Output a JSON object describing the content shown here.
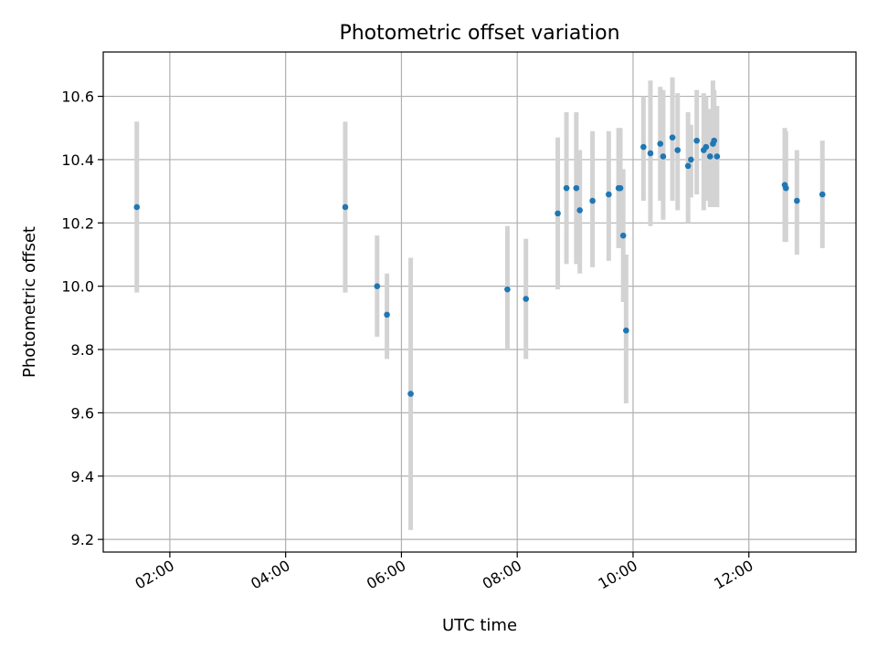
{
  "chart_data": {
    "type": "scatter",
    "title": "Photometric offset variation",
    "xlabel": "UTC time",
    "ylabel": "Photometric offset",
    "x_unit": "hours UTC",
    "xlim": [
      0.85,
      13.85
    ],
    "ylim": [
      9.16,
      10.74
    ],
    "x_ticks": [
      {
        "value": 2,
        "label": "02:00"
      },
      {
        "value": 4,
        "label": "04:00"
      },
      {
        "value": 6,
        "label": "06:00"
      },
      {
        "value": 8,
        "label": "08:00"
      },
      {
        "value": 10,
        "label": "10:00"
      },
      {
        "value": 12,
        "label": "12:00"
      }
    ],
    "y_ticks": [
      {
        "value": 9.2,
        "label": "9.2"
      },
      {
        "value": 9.4,
        "label": "9.4"
      },
      {
        "value": 9.6,
        "label": "9.6"
      },
      {
        "value": 9.8,
        "label": "9.8"
      },
      {
        "value": 10.0,
        "label": "10.0"
      },
      {
        "value": 10.2,
        "label": "10.2"
      },
      {
        "value": 10.4,
        "label": "10.4"
      },
      {
        "value": 10.6,
        "label": "10.6"
      }
    ],
    "grid": true,
    "point_color": "#1f77b4",
    "errorbar_color": "#d3d3d3",
    "points": [
      {
        "x": 1.43,
        "y": 10.25,
        "lo": 9.98,
        "hi": 10.52
      },
      {
        "x": 5.03,
        "y": 10.25,
        "lo": 9.98,
        "hi": 10.52
      },
      {
        "x": 5.58,
        "y": 10.0,
        "lo": 9.84,
        "hi": 10.16
      },
      {
        "x": 5.75,
        "y": 9.91,
        "lo": 9.77,
        "hi": 10.04
      },
      {
        "x": 6.16,
        "y": 9.66,
        "lo": 9.23,
        "hi": 10.09
      },
      {
        "x": 7.83,
        "y": 9.99,
        "lo": 9.8,
        "hi": 10.19
      },
      {
        "x": 8.15,
        "y": 9.96,
        "lo": 9.77,
        "hi": 10.15
      },
      {
        "x": 8.7,
        "y": 10.23,
        "lo": 9.99,
        "hi": 10.47
      },
      {
        "x": 8.85,
        "y": 10.31,
        "lo": 10.07,
        "hi": 10.55
      },
      {
        "x": 9.02,
        "y": 10.31,
        "lo": 10.07,
        "hi": 10.55
      },
      {
        "x": 9.08,
        "y": 10.24,
        "lo": 10.04,
        "hi": 10.43
      },
      {
        "x": 9.3,
        "y": 10.27,
        "lo": 10.06,
        "hi": 10.49
      },
      {
        "x": 9.58,
        "y": 10.29,
        "lo": 10.08,
        "hi": 10.49
      },
      {
        "x": 9.75,
        "y": 10.31,
        "lo": 10.12,
        "hi": 10.5
      },
      {
        "x": 9.78,
        "y": 10.31,
        "lo": 10.12,
        "hi": 10.5
      },
      {
        "x": 9.83,
        "y": 10.16,
        "lo": 9.95,
        "hi": 10.37
      },
      {
        "x": 9.88,
        "y": 9.86,
        "lo": 9.63,
        "hi": 10.1
      },
      {
        "x": 10.18,
        "y": 10.44,
        "lo": 10.27,
        "hi": 10.6
      },
      {
        "x": 10.3,
        "y": 10.42,
        "lo": 10.19,
        "hi": 10.65
      },
      {
        "x": 10.47,
        "y": 10.45,
        "lo": 10.27,
        "hi": 10.63
      },
      {
        "x": 10.52,
        "y": 10.41,
        "lo": 10.21,
        "hi": 10.62
      },
      {
        "x": 10.68,
        "y": 10.47,
        "lo": 10.27,
        "hi": 10.66
      },
      {
        "x": 10.77,
        "y": 10.43,
        "lo": 10.24,
        "hi": 10.61
      },
      {
        "x": 10.95,
        "y": 10.38,
        "lo": 10.2,
        "hi": 10.55
      },
      {
        "x": 11.0,
        "y": 10.4,
        "lo": 10.28,
        "hi": 10.51
      },
      {
        "x": 11.1,
        "y": 10.46,
        "lo": 10.29,
        "hi": 10.62
      },
      {
        "x": 11.22,
        "y": 10.43,
        "lo": 10.24,
        "hi": 10.61
      },
      {
        "x": 11.26,
        "y": 10.44,
        "lo": 10.27,
        "hi": 10.6
      },
      {
        "x": 11.33,
        "y": 10.41,
        "lo": 10.25,
        "hi": 10.56
      },
      {
        "x": 11.38,
        "y": 10.45,
        "lo": 10.25,
        "hi": 10.65
      },
      {
        "x": 11.4,
        "y": 10.46,
        "lo": 10.3,
        "hi": 10.62
      },
      {
        "x": 11.45,
        "y": 10.41,
        "lo": 10.25,
        "hi": 10.57
      },
      {
        "x": 12.62,
        "y": 10.32,
        "lo": 10.14,
        "hi": 10.5
      },
      {
        "x": 12.64,
        "y": 10.31,
        "lo": 10.14,
        "hi": 10.49
      },
      {
        "x": 12.83,
        "y": 10.27,
        "lo": 10.1,
        "hi": 10.43
      },
      {
        "x": 13.27,
        "y": 10.29,
        "lo": 10.12,
        "hi": 10.46
      }
    ]
  }
}
